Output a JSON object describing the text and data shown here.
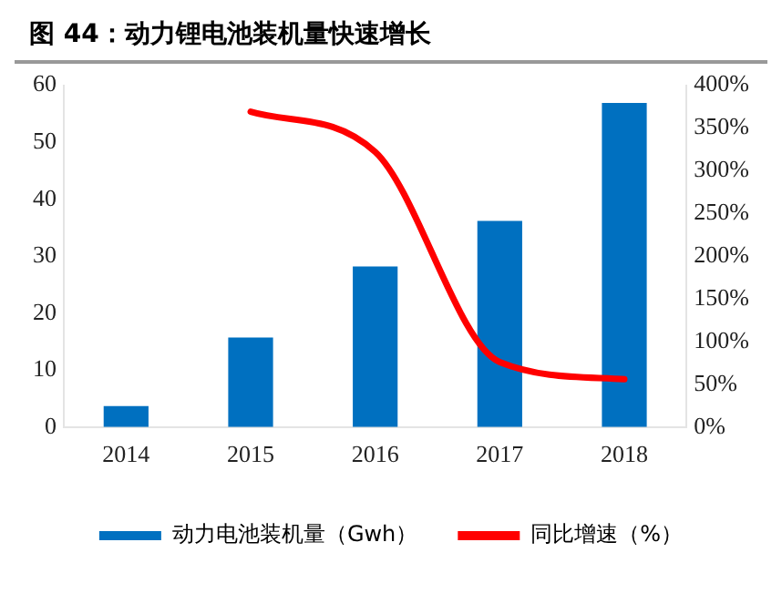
{
  "chart_data": {
    "type": "bar",
    "title": "图 44：动力锂电池装机量快速增长",
    "categories": [
      "2014",
      "2015",
      "2016",
      "2017",
      "2018"
    ],
    "series": [
      {
        "name": "动力电池装机量（Gwh）",
        "color": "#0070c0",
        "values": [
          3.7,
          15.7,
          28.2,
          36.2,
          56.9
        ]
      },
      {
        "name": "同比增速（%）",
        "type": "line",
        "axis": "y2",
        "color": "#ff0000",
        "values": [
          null,
          369,
          322,
          76,
          56
        ]
      }
    ],
    "ylim": [
      0,
      60
    ],
    "yticks": [
      0,
      10,
      20,
      30,
      40,
      50,
      60
    ],
    "y2lim": [
      0,
      400
    ],
    "y2ticks": [
      {
        "value": 0,
        "label": "0%"
      },
      {
        "value": 50,
        "label": "50%"
      },
      {
        "value": 100,
        "label": "100%"
      },
      {
        "value": 150,
        "label": "150%"
      },
      {
        "value": 200,
        "label": "200%"
      },
      {
        "value": 250,
        "label": "250%"
      },
      {
        "value": 300,
        "label": "300%"
      },
      {
        "value": 350,
        "label": "350%"
      },
      {
        "value": 400,
        "label": "400%"
      }
    ],
    "grid": false,
    "legend": "bottom",
    "marker": "none",
    "line_style": "solid"
  }
}
